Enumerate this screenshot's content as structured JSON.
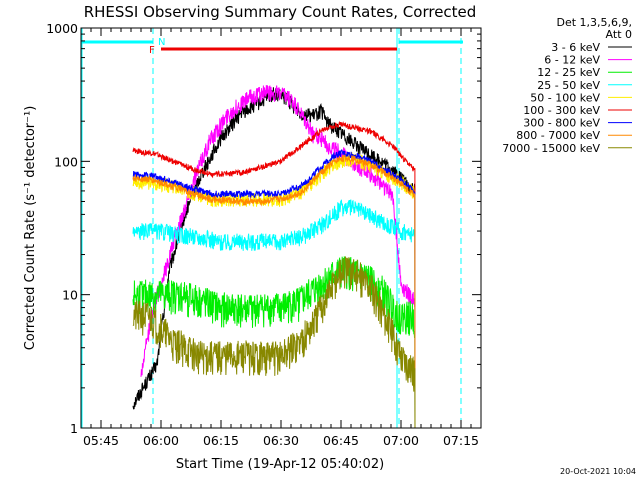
{
  "chart_data": {
    "type": "line",
    "title": "RHESSI Observing Summary Count Rates, Corrected",
    "xlabel": "Start Time (19-Apr-12 05:40:02)",
    "ylabel": "Corrected Count Rate (s⁻¹ detector⁻¹)",
    "yscale": "log",
    "ylim": [
      1,
      1000
    ],
    "xlim_minutes": [
      0,
      100
    ],
    "x_ticks": [
      {
        "label": "05:45",
        "t": 5
      },
      {
        "label": "06:00",
        "t": 20
      },
      {
        "label": "06:15",
        "t": 35
      },
      {
        "label": "06:30",
        "t": 50
      },
      {
        "label": "06:45",
        "t": 65
      },
      {
        "label": "07:00",
        "t": 80
      },
      {
        "label": "07:15",
        "t": 95
      }
    ],
    "y_ticks": [
      {
        "label": "1",
        "v": 1
      },
      {
        "label": "10",
        "v": 10
      },
      {
        "label": "100",
        "v": 100
      },
      {
        "label": "1000",
        "v": 1000
      }
    ],
    "legend_header": [
      "Det 1,3,5,6,9,",
      "Att 0"
    ],
    "series": [
      {
        "name": "3 - 6 keV",
        "color": "#000000",
        "t": [
          13,
          19,
          22,
          26,
          30,
          35,
          40,
          45,
          48,
          51,
          55,
          58,
          60,
          62,
          65,
          70,
          75,
          78,
          80,
          82,
          83.5
        ],
        "v": [
          1.5,
          3,
          15,
          40,
          80,
          150,
          230,
          280,
          320,
          300,
          230,
          220,
          240,
          190,
          165,
          125,
          100,
          85,
          75,
          65,
          60
        ]
      },
      {
        "name": "6 - 12 keV",
        "color": "#ff00ff",
        "t": [
          15,
          18,
          21,
          24,
          28,
          32,
          37,
          42,
          46,
          50,
          53,
          56,
          58,
          60,
          62,
          65,
          70,
          75,
          78,
          80,
          82,
          83.5
        ],
        "v": [
          2.5,
          8,
          15,
          30,
          70,
          140,
          230,
          300,
          330,
          320,
          280,
          200,
          160,
          150,
          130,
          115,
          90,
          70,
          55,
          12,
          10,
          9
        ]
      },
      {
        "name": "12 - 25 keV",
        "color": "#00ee00",
        "t": [
          13,
          20,
          25,
          30,
          35,
          40,
          45,
          50,
          55,
          60,
          63,
          65,
          68,
          72,
          75,
          78,
          80,
          82,
          83.5
        ],
        "v": [
          10,
          10,
          10,
          9,
          8,
          8,
          8,
          8,
          9,
          12,
          14,
          15,
          15,
          13,
          11,
          8,
          7,
          7,
          6.5
        ]
      },
      {
        "name": "25 - 50 keV",
        "color": "#00ffff",
        "t": [
          13,
          20,
          25,
          30,
          35,
          40,
          45,
          50,
          55,
          60,
          63,
          65,
          68,
          72,
          75,
          78,
          80,
          82,
          83.5
        ],
        "v": [
          30,
          30,
          28,
          27,
          25,
          25,
          25,
          25,
          27,
          33,
          40,
          45,
          45,
          40,
          36,
          32,
          30,
          29,
          27
        ]
      },
      {
        "name": "50 - 100 keV",
        "color": "#ffee00",
        "t": [
          13,
          18,
          23,
          28,
          33,
          40,
          45,
          50,
          55,
          60,
          63,
          65,
          68,
          72,
          75,
          78,
          80,
          82,
          83.5
        ],
        "v": [
          70,
          70,
          65,
          58,
          52,
          52,
          52,
          52,
          58,
          80,
          95,
          100,
          105,
          95,
          85,
          75,
          70,
          62,
          58
        ]
      },
      {
        "name": "100 - 300 keV",
        "color": "#ee0000",
        "t": [
          13,
          18,
          23,
          28,
          33,
          40,
          45,
          50,
          55,
          60,
          63,
          65,
          68,
          72,
          75,
          78,
          80,
          82,
          83.5
        ],
        "v": [
          120,
          115,
          100,
          88,
          80,
          82,
          90,
          100,
          130,
          170,
          185,
          190,
          180,
          170,
          150,
          130,
          110,
          95,
          85
        ]
      },
      {
        "name": "300 - 800 keV",
        "color": "#0000ff",
        "t": [
          13,
          18,
          23,
          28,
          33,
          40,
          45,
          50,
          55,
          60,
          63,
          65,
          68,
          72,
          75,
          78,
          80,
          82,
          83.5
        ],
        "v": [
          80,
          78,
          70,
          62,
          57,
          57,
          57,
          57,
          65,
          90,
          110,
          115,
          112,
          102,
          90,
          80,
          72,
          65,
          60
        ]
      },
      {
        "name": "800 - 7000 keV",
        "color": "#ff8800",
        "t": [
          13,
          18,
          23,
          28,
          33,
          40,
          45,
          50,
          55,
          60,
          63,
          65,
          68,
          72,
          75,
          78,
          80,
          82,
          83.5
        ],
        "v": [
          75,
          72,
          65,
          57,
          52,
          50,
          50,
          52,
          58,
          82,
          98,
          105,
          105,
          95,
          85,
          75,
          68,
          60,
          56
        ]
      },
      {
        "name": "7000 - 15000 keV",
        "color": "#888800",
        "t": [
          13,
          17,
          20,
          23,
          26,
          30,
          35,
          40,
          45,
          50,
          55,
          58,
          60,
          63,
          65,
          68,
          72,
          75,
          78,
          80,
          82,
          83.5
        ],
        "v": [
          7,
          7,
          5.5,
          4.5,
          4,
          3.5,
          3.5,
          3.5,
          3.5,
          3.5,
          4.5,
          6,
          8,
          12,
          15,
          15,
          12,
          8,
          5,
          3.5,
          3,
          2.5
        ]
      }
    ],
    "markers": {
      "night_label": "N",
      "flare_label": "F",
      "night_color": "#00ffff",
      "flare_color": "#ee0000",
      "flare_start": 20,
      "flare_end": 79,
      "night_start": 18,
      "night_end": 79.5,
      "dashed_lines": [
        18,
        79.5,
        95
      ],
      "solid_lines": [
        0,
        79
      ]
    },
    "timestamp": "20-Oct-2021 10:04"
  }
}
